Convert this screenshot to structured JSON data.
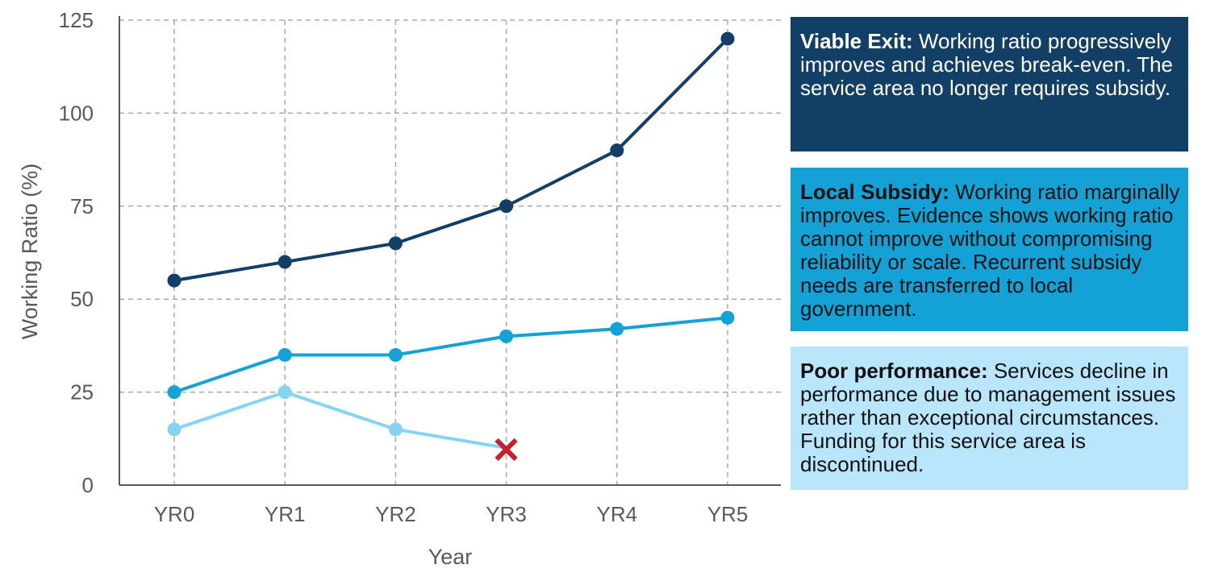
{
  "chart_data": {
    "type": "line",
    "title": "",
    "xlabel": "Year",
    "ylabel": "Working Ratio (%)",
    "categories": [
      "YR0",
      "YR1",
      "YR2",
      "YR3",
      "YR4",
      "YR5"
    ],
    "ylim": [
      0,
      125
    ],
    "yticks": [
      0,
      25,
      50,
      75,
      100,
      125
    ],
    "grid": true,
    "series": [
      {
        "name": "Viable Exit",
        "color": "#123f66",
        "values": [
          55,
          60,
          65,
          75,
          90,
          120
        ]
      },
      {
        "name": "Local Subsidy",
        "color": "#13a1d6",
        "values": [
          25,
          35,
          35,
          40,
          42,
          45
        ]
      },
      {
        "name": "Poor performance",
        "color": "#84d4f4",
        "values": [
          15,
          25,
          15,
          10,
          null,
          null
        ],
        "terminated_at": "YR3",
        "terminator_marker": "X"
      }
    ],
    "terminator_color": "#c81e2e"
  },
  "legend": [
    {
      "title": "Viable Exit:",
      "text": "Working ratio progressively improves and achieves break-even. The service area no longer requires subsidy.",
      "bg": "#123f66",
      "fg": "#ffffff"
    },
    {
      "title": "Local Subsidy:",
      "text": "Working ratio marginally improves. Evidence shows working ratio cannot improve without compromising reliability or scale. Recurrent subsidy needs are transferred to local government.",
      "bg": "#13a1d6",
      "fg": "#111111"
    },
    {
      "title": "Poor performance:",
      "text": "Services decline in performance due to management issues rather than exceptional circumstances. Funding for this service area is discontinued.",
      "bg": "#b9e6fa",
      "fg": "#111111"
    }
  ]
}
